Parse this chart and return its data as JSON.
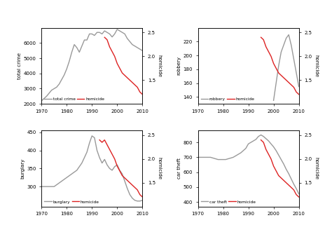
{
  "years": [
    1970,
    1971,
    1972,
    1973,
    1974,
    1975,
    1976,
    1977,
    1978,
    1979,
    1980,
    1981,
    1982,
    1983,
    1984,
    1985,
    1986,
    1987,
    1988,
    1989,
    1990,
    1991,
    1992,
    1993,
    1994,
    1995,
    1996,
    1997,
    1998,
    1999,
    2000,
    2001,
    2002,
    2003,
    2004,
    2005,
    2006,
    2007,
    2008,
    2009,
    2010
  ],
  "total_crime": [
    2200,
    2350,
    2500,
    2700,
    2900,
    3000,
    3100,
    3300,
    3600,
    3900,
    4300,
    4800,
    5400,
    5900,
    5700,
    5400,
    5800,
    6200,
    6200,
    6600,
    6600,
    6500,
    6700,
    6700,
    6600,
    6800,
    6700,
    6600,
    6400,
    6600,
    6900,
    6800,
    6700,
    6600,
    6300,
    6100,
    5900,
    5800,
    5700,
    5600,
    5500
  ],
  "homicide_tc": [
    null,
    null,
    null,
    null,
    null,
    null,
    null,
    null,
    null,
    null,
    null,
    null,
    null,
    null,
    null,
    null,
    null,
    null,
    null,
    null,
    null,
    null,
    null,
    null,
    null,
    2.4,
    2.35,
    2.2,
    2.1,
    2.0,
    1.85,
    1.75,
    1.65,
    1.6,
    1.55,
    1.5,
    1.45,
    1.4,
    1.35,
    1.25,
    1.2
  ],
  "robbery": [
    null,
    null,
    null,
    null,
    null,
    null,
    null,
    null,
    null,
    null,
    null,
    null,
    null,
    null,
    null,
    null,
    null,
    null,
    null,
    null,
    null,
    null,
    null,
    null,
    null,
    null,
    null,
    null,
    null,
    null,
    135,
    160,
    185,
    205,
    215,
    225,
    230,
    215,
    195,
    175,
    155
  ],
  "homicide_rob": [
    null,
    null,
    null,
    null,
    null,
    null,
    null,
    null,
    null,
    null,
    null,
    null,
    null,
    null,
    null,
    null,
    null,
    null,
    null,
    null,
    null,
    null,
    null,
    null,
    null,
    2.4,
    2.35,
    2.2,
    2.1,
    2.0,
    1.85,
    1.75,
    1.65,
    1.6,
    1.55,
    1.5,
    1.45,
    1.4,
    1.35,
    1.25,
    1.2
  ],
  "burglary": [
    null,
    null,
    null,
    null,
    null,
    null,
    null,
    null,
    null,
    null,
    null,
    null,
    null,
    null,
    null,
    null,
    null,
    null,
    null,
    null,
    null,
    null,
    null,
    null,
    null,
    null,
    null,
    null,
    null,
    null,
    null,
    null,
    null,
    null,
    null,
    null,
    null,
    null,
    null,
    null,
    null
  ],
  "burglary_real": [
    300,
    300,
    300,
    300,
    300,
    300,
    305,
    310,
    315,
    320,
    325,
    330,
    335,
    340,
    345,
    355,
    365,
    380,
    395,
    420,
    440,
    435,
    400,
    380,
    365,
    375,
    360,
    350,
    345,
    355,
    360,
    345,
    335,
    315,
    295,
    278,
    268,
    262,
    260,
    260,
    262
  ],
  "homicide_burg": [
    null,
    null,
    null,
    null,
    null,
    null,
    null,
    null,
    null,
    null,
    null,
    null,
    null,
    null,
    null,
    null,
    null,
    null,
    null,
    null,
    null,
    null,
    null,
    2.4,
    2.35,
    2.4,
    2.3,
    2.2,
    2.1,
    2.0,
    1.85,
    1.75,
    1.65,
    1.6,
    1.55,
    1.5,
    1.45,
    1.4,
    1.35,
    1.25,
    1.2
  ],
  "car_theft_real": [
    null,
    null,
    null,
    null,
    null,
    null,
    null,
    null,
    null,
    null,
    null,
    null,
    null,
    null,
    null,
    null,
    null,
    null,
    null,
    null,
    null,
    null,
    null,
    null,
    null,
    null,
    null,
    null,
    null,
    null,
    null,
    null,
    null,
    null,
    null,
    null,
    null,
    null,
    null,
    null,
    null
  ],
  "car_theft": [
    700,
    700,
    700,
    700,
    700,
    700,
    695,
    690,
    685,
    685,
    685,
    685,
    690,
    695,
    700,
    710,
    720,
    730,
    745,
    760,
    790,
    800,
    810,
    820,
    840,
    850,
    840,
    825,
    810,
    790,
    770,
    745,
    715,
    685,
    655,
    620,
    590,
    555,
    520,
    490,
    455
  ],
  "homicide_car": [
    null,
    null,
    null,
    null,
    null,
    null,
    null,
    null,
    null,
    null,
    null,
    null,
    null,
    null,
    null,
    null,
    null,
    null,
    null,
    null,
    null,
    null,
    null,
    null,
    null,
    2.4,
    2.35,
    2.2,
    2.1,
    2.0,
    1.85,
    1.75,
    1.65,
    1.6,
    1.55,
    1.5,
    1.45,
    1.4,
    1.35,
    1.25,
    1.2
  ],
  "gray_color": "#999999",
  "red_color": "#dd2222",
  "bg_color": "#ffffff",
  "fig_bg": "#ffffff",
  "linewidth": 1.0,
  "xticks": [
    1970,
    1980,
    1990,
    2000,
    2010
  ],
  "xlim": [
    1970,
    2010
  ],
  "tc_ylim": [
    2000,
    7000
  ],
  "tc_yticks": [
    2000,
    3000,
    4000,
    5000,
    6000
  ],
  "rob_ylim": [
    130,
    240
  ],
  "rob_yticks": [
    140,
    160,
    180,
    200,
    220
  ],
  "burg_ylim": [
    245,
    455
  ],
  "burg_yticks": [
    300,
    350,
    400,
    450
  ],
  "car_ylim": [
    370,
    880
  ],
  "car_yticks": [
    400,
    500,
    600,
    700,
    800
  ],
  "hom_ylim": [
    1.0,
    2.6
  ],
  "hom_yticks": [
    1.5,
    2.0,
    2.5
  ]
}
